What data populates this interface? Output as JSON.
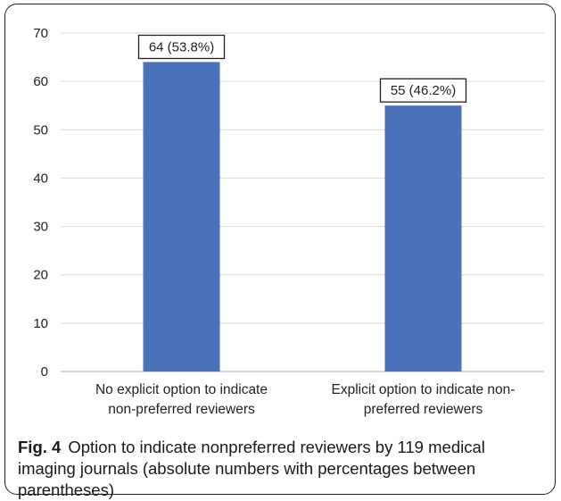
{
  "chart_data": {
    "type": "bar",
    "categories": [
      [
        "No explicit option to indicate",
        "non-preferred reviewers"
      ],
      [
        "Explicit option to indicate non-",
        "preferred reviewers"
      ]
    ],
    "values": [
      64,
      55
    ],
    "data_labels": [
      "64 (53.8%)",
      "55 (46.2%)"
    ],
    "y_ticks": [
      0,
      10,
      20,
      30,
      40,
      50,
      60,
      70
    ],
    "ylim": [
      0,
      70
    ],
    "grid": true,
    "bar_color": "#4a72ba",
    "title": "",
    "xlabel": "",
    "ylabel": ""
  },
  "caption": {
    "label": "Fig. 4",
    "text": "Option to indicate nonpreferred reviewers by 119 medical imaging journals (absolute numbers with percentages between parentheses)"
  }
}
